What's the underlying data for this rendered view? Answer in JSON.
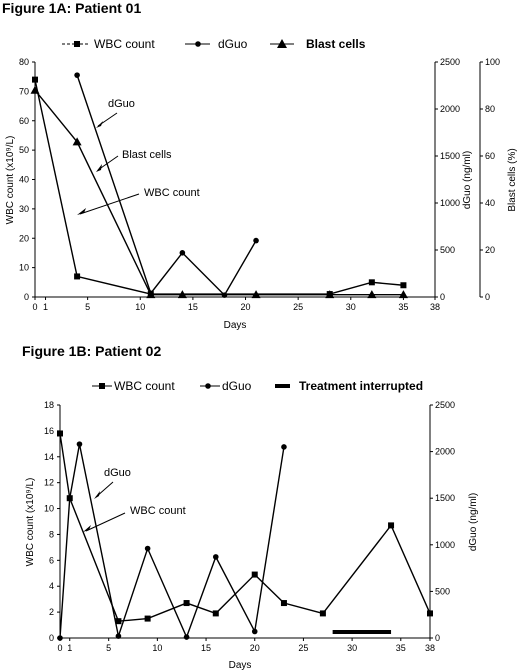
{
  "chart_data": [
    {
      "type": "line",
      "title": "Figure 1A: Patient 01",
      "xlabel": "Days",
      "x_ticks": [
        0,
        1,
        5,
        10,
        15,
        20,
        25,
        30,
        35,
        38
      ],
      "xlim": [
        0,
        38
      ],
      "axes": {
        "left": {
          "label": "WBC count (x10⁹/L)",
          "ylim": [
            0,
            80
          ],
          "ticks": [
            0,
            10,
            20,
            30,
            40,
            50,
            60,
            70,
            80
          ]
        },
        "right1": {
          "label": "dGuo (ng/ml)",
          "ylim": [
            0,
            2500
          ],
          "ticks": [
            0,
            500,
            1000,
            1500,
            2000,
            2500
          ]
        },
        "right2": {
          "label": "Blast cells (%)",
          "ylim": [
            0,
            100
          ],
          "ticks": [
            0,
            20,
            40,
            60,
            80,
            100
          ]
        }
      },
      "series": [
        {
          "name": "WBC count",
          "axis": "left",
          "marker": "square",
          "dashed_legend": true,
          "x": [
            0,
            4,
            11,
            28,
            32,
            35
          ],
          "y": [
            74,
            7,
            1,
            1,
            5,
            4
          ]
        },
        {
          "name": "dGuo",
          "axis": "right1",
          "marker": "circle",
          "x": [
            4,
            11,
            14,
            18,
            21
          ],
          "y": [
            2360,
            40,
            470,
            20,
            600
          ]
        },
        {
          "name": "Blast cells",
          "axis": "right2",
          "marker": "triangle",
          "x": [
            0,
            4,
            11,
            14,
            21,
            28,
            32,
            35
          ],
          "y": [
            88,
            66,
            1,
            1,
            1,
            1,
            1,
            1
          ]
        }
      ],
      "annotations": [
        "dGuo",
        "Blast cells",
        "WBC count"
      ],
      "legend": "top"
    },
    {
      "type": "line",
      "title": "Figure 1B: Patient 02",
      "xlabel": "Days",
      "x_ticks": [
        0,
        1,
        5,
        10,
        15,
        20,
        25,
        30,
        35,
        38
      ],
      "xlim": [
        0,
        38
      ],
      "axes": {
        "left": {
          "label": "WBC count (x10⁹/L)",
          "ylim": [
            0,
            18
          ],
          "ticks": [
            0,
            2,
            4,
            6,
            8,
            10,
            12,
            14,
            16,
            18
          ]
        },
        "right1": {
          "label": "dGuo (ng/ml)",
          "ylim": [
            0,
            2500
          ],
          "ticks": [
            0,
            500,
            1000,
            1500,
            2000,
            2500
          ]
        }
      },
      "series": [
        {
          "name": "WBC count",
          "axis": "left",
          "marker": "square",
          "x": [
            0,
            1,
            6,
            9,
            13,
            16,
            20,
            23,
            27,
            34,
            38
          ],
          "y": [
            15.8,
            10.8,
            1.3,
            1.5,
            2.7,
            1.9,
            4.9,
            2.7,
            1.9,
            8.7,
            1.9
          ]
        },
        {
          "name": "dGuo",
          "axis": "right1",
          "marker": "circle",
          "x": [
            0,
            1,
            2,
            6,
            9,
            13,
            16,
            20,
            23
          ],
          "y": [
            0,
            1500,
            2080,
            20,
            960,
            10,
            870,
            70,
            2050
          ]
        }
      ],
      "interruption": {
        "name": "Treatment interrupted",
        "from": 28,
        "to": 34
      },
      "annotations": [
        "dGuo",
        "WBC count"
      ],
      "legend": "top"
    }
  ]
}
